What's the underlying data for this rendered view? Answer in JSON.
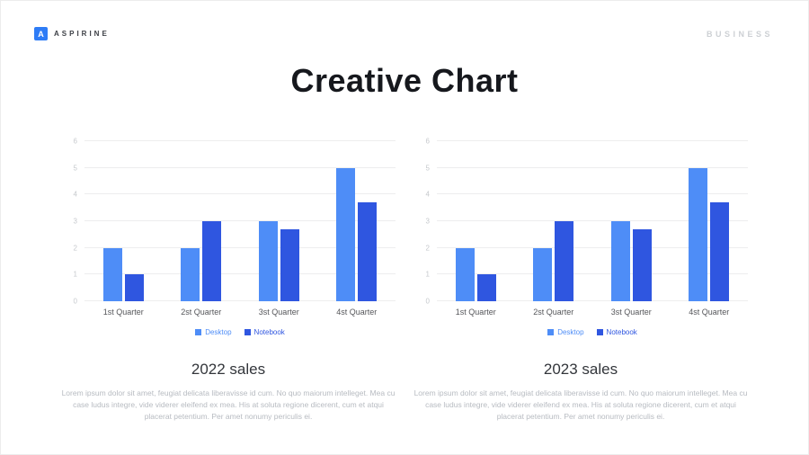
{
  "header": {
    "logo_letter": "A",
    "brand": "ASPIRINE",
    "label_right": "BUSINESS"
  },
  "title": "Creative Chart",
  "colors": {
    "accent": "#2e7cf6",
    "desktop": "#4e8df7",
    "notebook": "#2f56e0"
  },
  "chart_data": [
    {
      "type": "bar",
      "title": "2022 sales",
      "categories": [
        "1st Quarter",
        "2st Quarter",
        "3st Quarter",
        "4st Quarter"
      ],
      "series": [
        {
          "name": "Desktop",
          "color": "#4e8df7",
          "values": [
            2,
            2,
            3,
            5
          ]
        },
        {
          "name": "Notebook",
          "color": "#2f56e0",
          "values": [
            1,
            3,
            2.7,
            3.7
          ]
        }
      ],
      "xlabel": "",
      "ylabel": "",
      "ylim": [
        0,
        6
      ],
      "yticks": [
        0,
        1,
        2,
        3,
        4,
        5,
        6
      ],
      "grid": true,
      "legend_position": "bottom"
    },
    {
      "type": "bar",
      "title": "2023 sales",
      "categories": [
        "1st Quarter",
        "2st Quarter",
        "3st Quarter",
        "4st Quarter"
      ],
      "series": [
        {
          "name": "Desktop",
          "color": "#4e8df7",
          "values": [
            2,
            2,
            3,
            5
          ]
        },
        {
          "name": "Notebook",
          "color": "#2f56e0",
          "values": [
            1,
            3,
            2.7,
            3.7
          ]
        }
      ],
      "xlabel": "",
      "ylabel": "",
      "ylim": [
        0,
        6
      ],
      "yticks": [
        0,
        1,
        2,
        3,
        4,
        5,
        6
      ],
      "grid": true,
      "legend_position": "bottom"
    }
  ],
  "sections": [
    {
      "heading": "2022 sales",
      "body": "Lorem ipsum dolor sit amet, feugiat delicata liberavisse id cum. No quo maiorum intelleget. Mea cu case ludus integre, vide viderer eleifend ex mea. His at soluta regione dicerent, cum et atqui placerat petentium. Per amet nonumy periculis ei."
    },
    {
      "heading": "2023 sales",
      "body": "Lorem ipsum dolor sit amet, feugiat delicata liberavisse id cum. No quo maiorum intelleget. Mea cu case ludus integre, vide viderer eleifend ex mea. His at soluta regione dicerent, cum et atqui placerat petentium. Per amet nonumy periculis ei."
    }
  ]
}
